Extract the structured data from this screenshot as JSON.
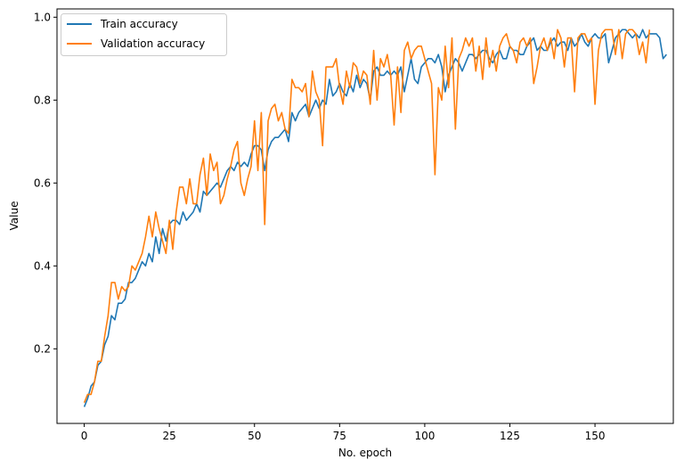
{
  "chart_data": {
    "type": "line",
    "xlabel": "No. epoch",
    "ylabel": "Value",
    "xlim": [
      -8,
      173
    ],
    "ylim": [
      0.02,
      1.02
    ],
    "xticks": [
      0,
      25,
      50,
      75,
      100,
      125,
      150
    ],
    "xtick_labels": [
      "0",
      "25",
      "50",
      "75",
      "100",
      "125",
      "150"
    ],
    "yticks": [
      0.2,
      0.4,
      0.6,
      0.8,
      1.0
    ],
    "ytick_labels": [
      "0.2",
      "0.4",
      "0.6",
      "0.8",
      "1.0"
    ],
    "grid": false,
    "legend_position": "top-left",
    "legend": [
      "Train accuracy",
      "Validation accuracy"
    ],
    "series": [
      {
        "name": "Train accuracy",
        "color": "#1f77b4",
        "x_start": 0,
        "values": [
          0.06,
          0.08,
          0.11,
          0.12,
          0.16,
          0.17,
          0.21,
          0.23,
          0.28,
          0.27,
          0.31,
          0.31,
          0.32,
          0.36,
          0.36,
          0.37,
          0.39,
          0.41,
          0.4,
          0.43,
          0.41,
          0.47,
          0.43,
          0.49,
          0.46,
          0.5,
          0.51,
          0.51,
          0.5,
          0.53,
          0.51,
          0.52,
          0.53,
          0.55,
          0.53,
          0.58,
          0.57,
          0.58,
          0.59,
          0.6,
          0.59,
          0.61,
          0.63,
          0.64,
          0.63,
          0.65,
          0.64,
          0.65,
          0.64,
          0.67,
          0.69,
          0.69,
          0.68,
          0.63,
          0.68,
          0.7,
          0.71,
          0.71,
          0.72,
          0.73,
          0.7,
          0.77,
          0.75,
          0.77,
          0.78,
          0.79,
          0.76,
          0.78,
          0.8,
          0.78,
          0.8,
          0.79,
          0.85,
          0.81,
          0.82,
          0.84,
          0.82,
          0.81,
          0.84,
          0.82,
          0.86,
          0.83,
          0.85,
          0.84,
          0.8,
          0.87,
          0.88,
          0.86,
          0.86,
          0.87,
          0.86,
          0.87,
          0.86,
          0.88,
          0.82,
          0.86,
          0.9,
          0.85,
          0.84,
          0.88,
          0.89,
          0.9,
          0.9,
          0.89,
          0.91,
          0.88,
          0.82,
          0.86,
          0.88,
          0.9,
          0.89,
          0.87,
          0.89,
          0.91,
          0.91,
          0.9,
          0.91,
          0.92,
          0.92,
          0.9,
          0.89,
          0.91,
          0.92,
          0.9,
          0.9,
          0.93,
          0.92,
          0.92,
          0.91,
          0.91,
          0.93,
          0.94,
          0.95,
          0.92,
          0.93,
          0.92,
          0.92,
          0.94,
          0.95,
          0.93,
          0.94,
          0.94,
          0.92,
          0.95,
          0.93,
          0.94,
          0.96,
          0.94,
          0.93,
          0.95,
          0.96,
          0.95,
          0.95,
          0.96,
          0.89,
          0.92,
          0.95,
          0.96,
          0.97,
          0.97,
          0.96,
          0.95,
          0.96,
          0.95,
          0.97,
          0.95,
          0.96,
          0.96,
          0.96,
          0.95,
          0.9,
          0.91
        ]
      },
      {
        "name": "Validation accuracy",
        "color": "#ff7f0e",
        "x_start": 0,
        "values": [
          0.07,
          0.09,
          0.09,
          0.12,
          0.17,
          0.17,
          0.23,
          0.28,
          0.36,
          0.36,
          0.32,
          0.35,
          0.34,
          0.35,
          0.4,
          0.39,
          0.41,
          0.43,
          0.47,
          0.52,
          0.47,
          0.53,
          0.49,
          0.46,
          0.43,
          0.51,
          0.44,
          0.53,
          0.59,
          0.59,
          0.55,
          0.61,
          0.55,
          0.55,
          0.62,
          0.66,
          0.57,
          0.67,
          0.63,
          0.65,
          0.55,
          0.57,
          0.61,
          0.64,
          0.68,
          0.7,
          0.6,
          0.57,
          0.61,
          0.64,
          0.75,
          0.63,
          0.77,
          0.5,
          0.75,
          0.78,
          0.79,
          0.75,
          0.77,
          0.73,
          0.72,
          0.85,
          0.83,
          0.83,
          0.82,
          0.84,
          0.76,
          0.87,
          0.82,
          0.8,
          0.69,
          0.88,
          0.88,
          0.88,
          0.9,
          0.83,
          0.79,
          0.87,
          0.83,
          0.89,
          0.88,
          0.84,
          0.87,
          0.86,
          0.79,
          0.92,
          0.8,
          0.9,
          0.88,
          0.91,
          0.86,
          0.74,
          0.88,
          0.77,
          0.92,
          0.94,
          0.9,
          0.92,
          0.93,
          0.93,
          0.9,
          0.87,
          0.84,
          0.62,
          0.83,
          0.8,
          0.93,
          0.83,
          0.95,
          0.73,
          0.9,
          0.92,
          0.95,
          0.93,
          0.95,
          0.87,
          0.93,
          0.85,
          0.95,
          0.88,
          0.92,
          0.87,
          0.93,
          0.95,
          0.96,
          0.93,
          0.92,
          0.89,
          0.94,
          0.95,
          0.93,
          0.95,
          0.84,
          0.88,
          0.93,
          0.95,
          0.92,
          0.95,
          0.9,
          0.97,
          0.95,
          0.88,
          0.95,
          0.95,
          0.82,
          0.95,
          0.96,
          0.96,
          0.94,
          0.95,
          0.79,
          0.92,
          0.96,
          0.97,
          0.97,
          0.97,
          0.91,
          0.97,
          0.9,
          0.96,
          0.97,
          0.97,
          0.96,
          0.91,
          0.94,
          0.89,
          0.97
        ]
      }
    ]
  }
}
